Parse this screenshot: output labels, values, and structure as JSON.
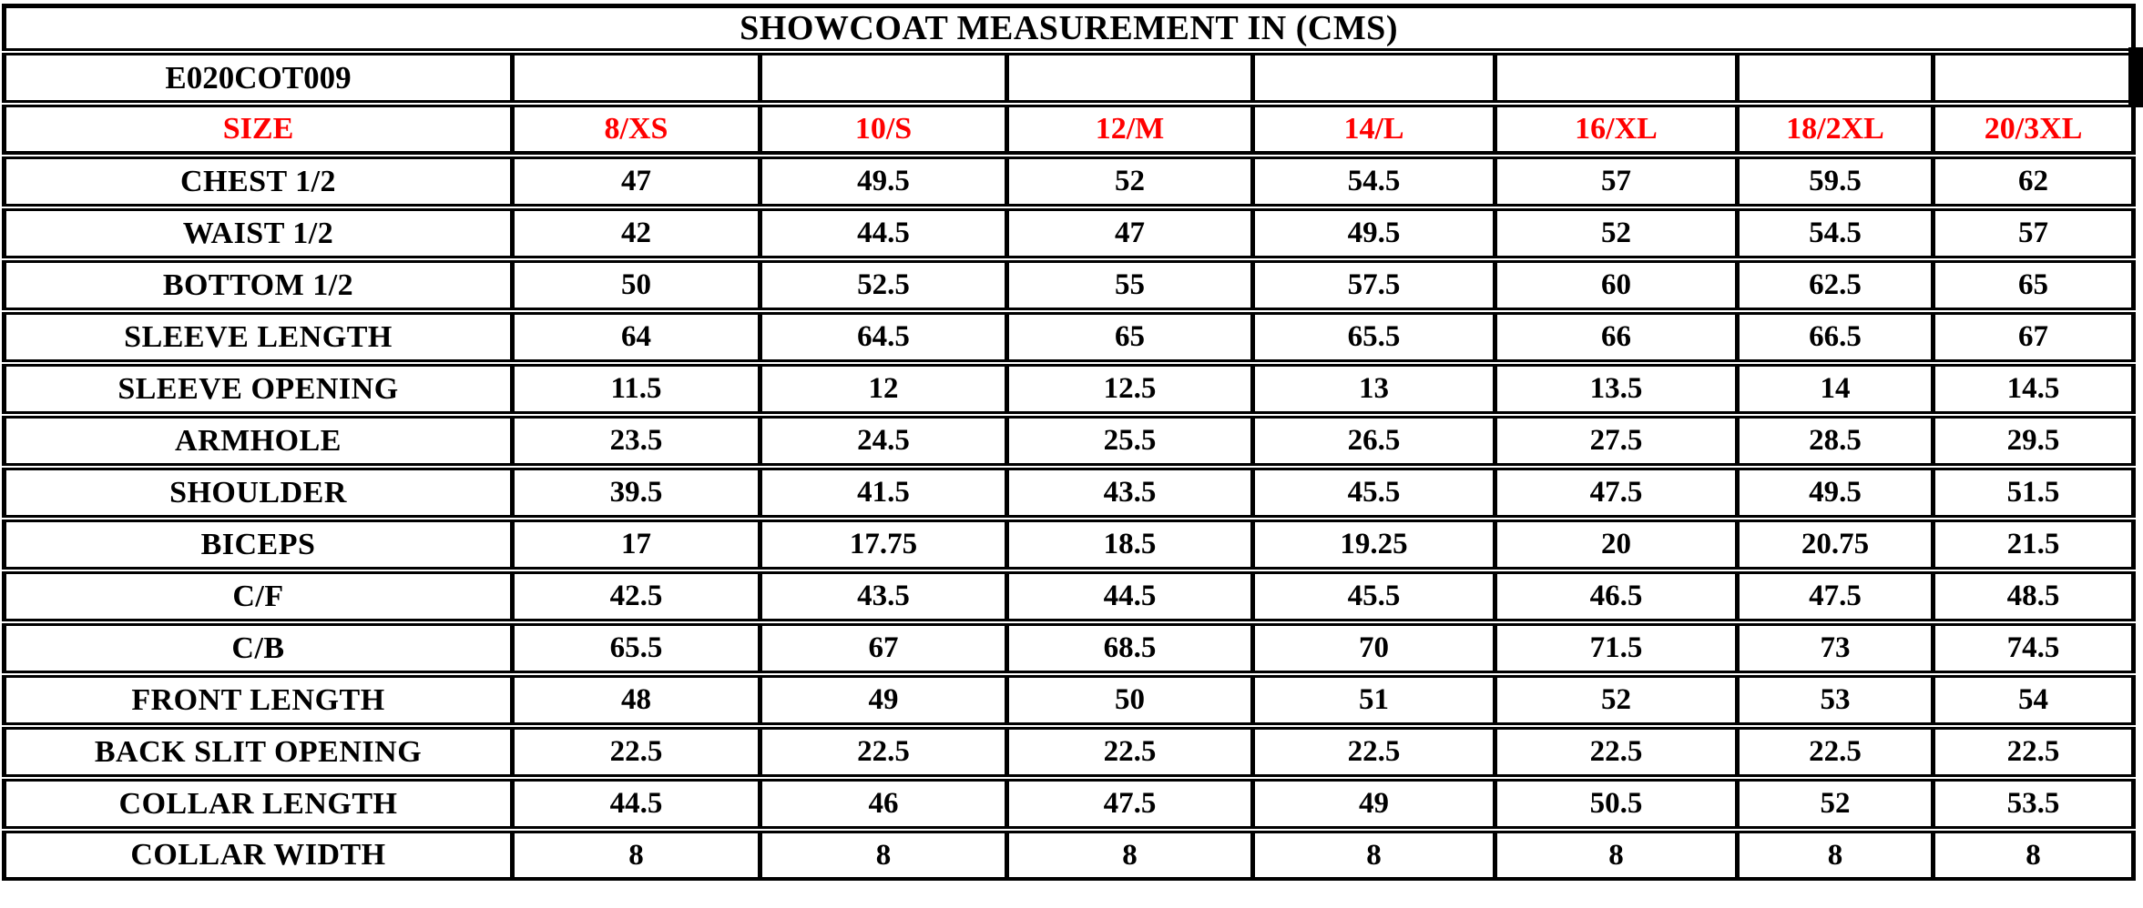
{
  "colors": {
    "accent_red": "#ff0000",
    "border_black": "#000000",
    "background": "#ffffff"
  },
  "chart_data": {
    "type": "table",
    "title": "SHOWCOAT MEASUREMENT IN (CMS)",
    "style_code": "E020COT009",
    "unit": "CMS",
    "columns": [
      "SIZE",
      "8/XS",
      "10/S",
      "12/M",
      "14/L",
      "16/XL",
      "18/2XL",
      "20/3XL"
    ],
    "rows": [
      {
        "label": "CHEST 1/2",
        "values": [
          "47",
          "49.5",
          "52",
          "54.5",
          "57",
          "59.5",
          "62"
        ]
      },
      {
        "label": "WAIST 1/2",
        "values": [
          "42",
          "44.5",
          "47",
          "49.5",
          "52",
          "54.5",
          "57"
        ]
      },
      {
        "label": "BOTTOM 1/2",
        "values": [
          "50",
          "52.5",
          "55",
          "57.5",
          "60",
          "62.5",
          "65"
        ]
      },
      {
        "label": "SLEEVE LENGTH",
        "values": [
          "64",
          "64.5",
          "65",
          "65.5",
          "66",
          "66.5",
          "67"
        ]
      },
      {
        "label": "SLEEVE OPENING",
        "values": [
          "11.5",
          "12",
          "12.5",
          "13",
          "13.5",
          "14",
          "14.5"
        ]
      },
      {
        "label": "ARMHOLE",
        "values": [
          "23.5",
          "24.5",
          "25.5",
          "26.5",
          "27.5",
          "28.5",
          "29.5"
        ]
      },
      {
        "label": "SHOULDER",
        "values": [
          "39.5",
          "41.5",
          "43.5",
          "45.5",
          "47.5",
          "49.5",
          "51.5"
        ]
      },
      {
        "label": "BICEPS",
        "values": [
          "17",
          "17.75",
          "18.5",
          "19.25",
          "20",
          "20.75",
          "21.5"
        ]
      },
      {
        "label": "C/F",
        "values": [
          "42.5",
          "43.5",
          "44.5",
          "45.5",
          "46.5",
          "47.5",
          "48.5"
        ]
      },
      {
        "label": "C/B",
        "values": [
          "65.5",
          "67",
          "68.5",
          "70",
          "71.5",
          "73",
          "74.5"
        ]
      },
      {
        "label": "FRONT LENGTH",
        "values": [
          "48",
          "49",
          "50",
          "51",
          "52",
          "53",
          "54"
        ]
      },
      {
        "label": "BACK SLIT OPENING",
        "values": [
          "22.5",
          "22.5",
          "22.5",
          "22.5",
          "22.5",
          "22.5",
          "22.5"
        ]
      },
      {
        "label": "COLLAR LENGTH",
        "values": [
          "44.5",
          "46",
          "47.5",
          "49",
          "50.5",
          "52",
          "53.5"
        ]
      },
      {
        "label": "COLLAR WIDTH",
        "values": [
          "8",
          "8",
          "8",
          "8",
          "8",
          "8",
          "8"
        ]
      }
    ],
    "layout": {
      "header_text_color_row": "SIZE row is red",
      "grid": true,
      "column_count": 8,
      "data_row_count": 14
    }
  }
}
